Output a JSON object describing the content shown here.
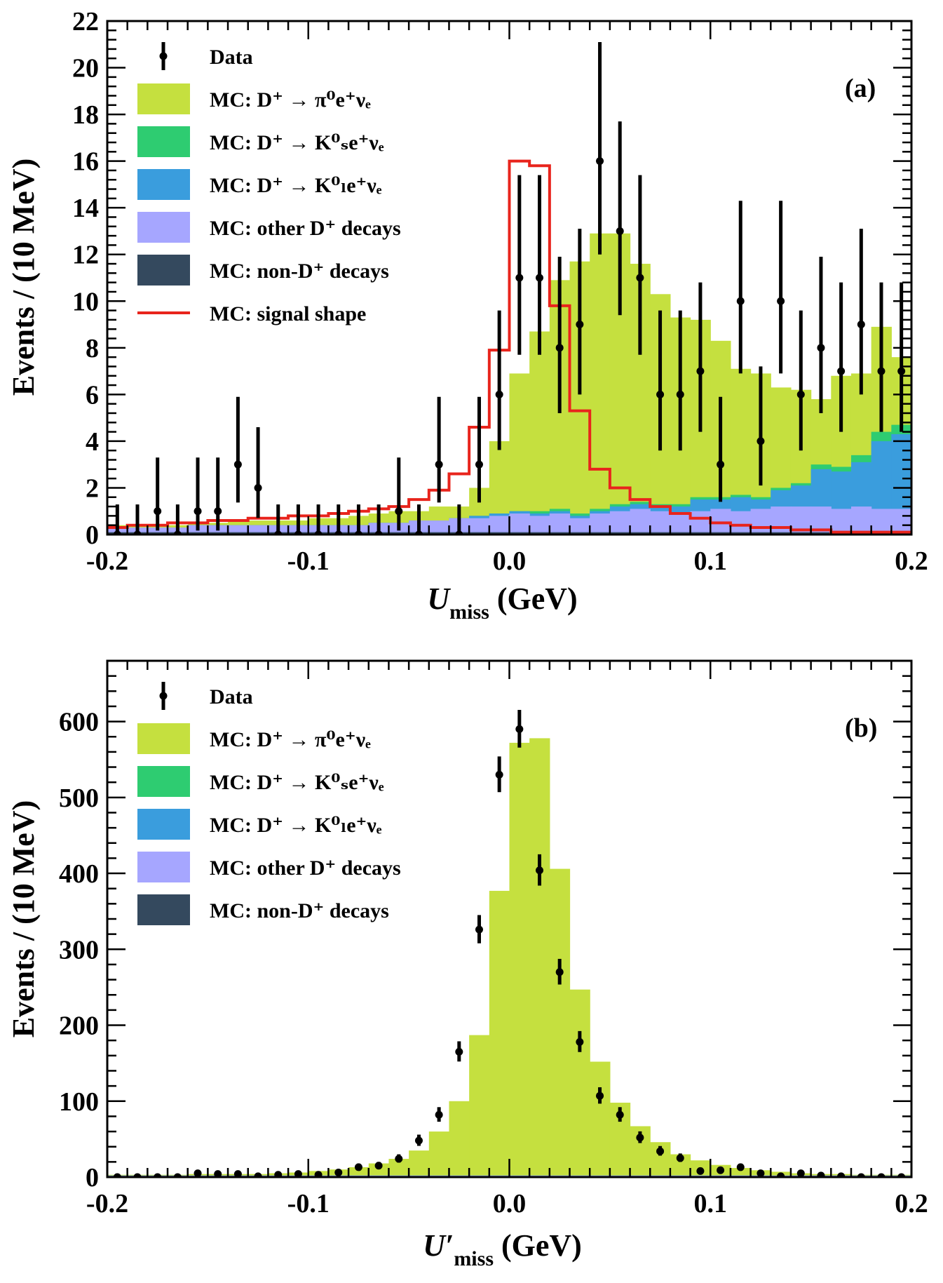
{
  "colors": {
    "pi0": "#c5e03f",
    "ks": "#2ecc71",
    "kl": "#3a9ddd",
    "other": "#a6a6ff",
    "nonD": "#34495e",
    "signal": "#e8241c",
    "data": "#000000"
  },
  "chart_data": [
    {
      "type": "area",
      "panel_label": "(a)",
      "xlabel_main": "U",
      "xlabel_sub": "miss",
      "xlabel_units": " (GeV)",
      "ylabel": "Events / (10 MeV)",
      "xlim": [
        -0.2,
        0.2
      ],
      "ylim": [
        0,
        22
      ],
      "xticks": [
        -0.2,
        -0.1,
        0.0,
        0.1,
        0.2
      ],
      "xtick_labels": [
        "-0.2",
        "-0.1",
        "0.0",
        "0.1",
        "0.2"
      ],
      "yticks": [
        0,
        2,
        4,
        6,
        8,
        10,
        12,
        14,
        16,
        18,
        20,
        22
      ],
      "ytick_labels": [
        "0",
        "2",
        "4",
        "6",
        "8",
        "10",
        "12",
        "14",
        "16",
        "18",
        "20",
        "22"
      ],
      "legend_placement": "top-left",
      "legend": [
        {
          "key": "data",
          "kind": "marker",
          "main": "Data"
        },
        {
          "key": "pi0",
          "kind": "box",
          "main": "MC: D⁺ → π⁰e⁺νₑ"
        },
        {
          "key": "ks",
          "kind": "box",
          "main": "MC: D⁺ → K⁰ₛe⁺νₑ"
        },
        {
          "key": "kl",
          "kind": "box",
          "main": "MC: D⁺ → K⁰ₗe⁺νₑ"
        },
        {
          "key": "other",
          "kind": "box",
          "main": "MC: other D⁺ decays"
        },
        {
          "key": "nonD",
          "kind": "box",
          "main": "MC: non-D⁺ decays"
        },
        {
          "key": "signal",
          "kind": "line",
          "main": "MC: signal shape"
        }
      ],
      "bin_edges": [
        -0.2,
        -0.19,
        -0.18,
        -0.17,
        -0.16,
        -0.15,
        -0.14,
        -0.13,
        -0.12,
        -0.11,
        -0.1,
        -0.09,
        -0.08,
        -0.07,
        -0.06,
        -0.05,
        -0.04,
        -0.03,
        -0.02,
        -0.01,
        0.0,
        0.01,
        0.02,
        0.03,
        0.04,
        0.05,
        0.06,
        0.07,
        0.08,
        0.09,
        0.1,
        0.11,
        0.12,
        0.13,
        0.14,
        0.15,
        0.16,
        0.17,
        0.18,
        0.19,
        0.2
      ],
      "stack": {
        "nonD": [
          0.1,
          0.1,
          0.1,
          0.1,
          0.1,
          0.1,
          0.1,
          0.1,
          0.1,
          0.1,
          0.1,
          0.1,
          0.1,
          0.1,
          0.1,
          0.1,
          0.1,
          0.1,
          0.1,
          0.1,
          0.1,
          0.1,
          0.1,
          0.1,
          0.1,
          0.1,
          0.1,
          0.1,
          0.1,
          0.1,
          0.1,
          0.1,
          0.1,
          0.1,
          0.1,
          0.1,
          0.1,
          0.1,
          0.1,
          0.1
        ],
        "other": [
          0.2,
          0.2,
          0.2,
          0.2,
          0.3,
          0.3,
          0.3,
          0.3,
          0.3,
          0.3,
          0.3,
          0.3,
          0.3,
          0.4,
          0.4,
          0.5,
          0.5,
          0.6,
          0.6,
          0.7,
          0.8,
          0.7,
          0.8,
          0.6,
          0.8,
          0.9,
          1.0,
          0.9,
          0.8,
          0.9,
          1.0,
          0.9,
          1.0,
          1.1,
          1.1,
          1.1,
          1.0,
          1.1,
          1.0,
          1.0
        ],
        "kl": [
          0.0,
          0.0,
          0.0,
          0.0,
          0.0,
          0.0,
          0.0,
          0.0,
          0.0,
          0.0,
          0.0,
          0.0,
          0.0,
          0.0,
          0.0,
          0.0,
          0.0,
          0.0,
          0.1,
          0.1,
          0.1,
          0.1,
          0.1,
          0.1,
          0.1,
          0.2,
          0.2,
          0.2,
          0.3,
          0.5,
          0.4,
          0.6,
          0.4,
          0.7,
          0.9,
          1.6,
          1.6,
          1.9,
          2.9,
          3.2
        ],
        "ks": [
          0.0,
          0.0,
          0.0,
          0.0,
          0.0,
          0.0,
          0.0,
          0.0,
          0.0,
          0.0,
          0.0,
          0.0,
          0.0,
          0.0,
          0.0,
          0.0,
          0.0,
          0.0,
          0.0,
          0.0,
          0.0,
          0.1,
          0.1,
          0.1,
          0.1,
          0.1,
          0.1,
          0.1,
          0.1,
          0.1,
          0.1,
          0.1,
          0.1,
          0.1,
          0.1,
          0.2,
          0.2,
          0.3,
          0.4,
          0.4
        ],
        "pi0": [
          0.1,
          0.1,
          0.1,
          0.1,
          0.1,
          0.1,
          0.2,
          0.2,
          0.2,
          0.2,
          0.3,
          0.3,
          0.4,
          0.4,
          0.5,
          0.4,
          0.6,
          0.5,
          1.2,
          3.1,
          5.9,
          7.7,
          9.8,
          10.8,
          11.8,
          11.6,
          10.2,
          9.0,
          8.0,
          7.6,
          6.7,
          5.4,
          5.3,
          4.3,
          4.0,
          2.8,
          3.9,
          3.5,
          4.5,
          2.9
        ]
      },
      "signal_shape": [
        0.3,
        0.4,
        0.4,
        0.5,
        0.5,
        0.6,
        0.6,
        0.7,
        0.7,
        0.8,
        0.8,
        0.9,
        1.0,
        1.1,
        1.2,
        1.5,
        1.9,
        2.6,
        4.6,
        7.9,
        16.0,
        15.8,
        9.8,
        5.3,
        2.8,
        2.0,
        1.5,
        1.2,
        0.9,
        0.7,
        0.5,
        0.4,
        0.3,
        0.3,
        0.2,
        0.2,
        0.1,
        0.1,
        0.1,
        0.1
      ],
      "data": {
        "x": [
          -0.195,
          -0.185,
          -0.175,
          -0.165,
          -0.155,
          -0.145,
          -0.135,
          -0.125,
          -0.115,
          -0.105,
          -0.095,
          -0.085,
          -0.075,
          -0.065,
          -0.055,
          -0.045,
          -0.035,
          -0.025,
          -0.015,
          -0.005,
          0.005,
          0.015,
          0.025,
          0.035,
          0.045,
          0.055,
          0.065,
          0.075,
          0.085,
          0.095,
          0.105,
          0.115,
          0.125,
          0.135,
          0.145,
          0.155,
          0.165,
          0.175,
          0.185,
          0.195
        ],
        "y": [
          0,
          0,
          1,
          0,
          1,
          1,
          3,
          2,
          0,
          0,
          0,
          0,
          0,
          0,
          1,
          0,
          3,
          0,
          3,
          6,
          11,
          11,
          8,
          9,
          16,
          13,
          11,
          6,
          6,
          7,
          3,
          10,
          4,
          10,
          6,
          8,
          7,
          9,
          7,
          7
        ],
        "err_low": [
          0,
          0,
          0.83,
          0,
          0.83,
          0.83,
          1.63,
          1.29,
          0,
          0,
          0,
          0,
          0,
          0,
          0.83,
          0,
          1.63,
          0,
          1.63,
          2.38,
          3.3,
          3.3,
          2.8,
          3.0,
          4.0,
          3.6,
          3.3,
          2.4,
          2.4,
          2.6,
          1.6,
          3.1,
          1.9,
          3.1,
          2.4,
          2.8,
          2.6,
          3.0,
          2.6,
          2.6
        ],
        "err_high": [
          1.29,
          1.29,
          2.3,
          1.29,
          2.3,
          2.3,
          2.9,
          2.6,
          1.29,
          1.29,
          1.29,
          1.29,
          1.29,
          1.29,
          2.3,
          1.29,
          2.9,
          1.29,
          2.9,
          3.6,
          4.4,
          4.4,
          3.9,
          4.1,
          5.1,
          4.7,
          4.4,
          3.6,
          3.6,
          3.8,
          2.9,
          4.3,
          3.2,
          4.3,
          3.6,
          3.9,
          3.8,
          4.1,
          3.8,
          3.8
        ]
      }
    },
    {
      "type": "area",
      "panel_label": "(b)",
      "xlabel_main": "U′",
      "xlabel_sub": "miss",
      "xlabel_units": " (GeV)",
      "ylabel": "Events / (10 MeV)",
      "xlim": [
        -0.2,
        0.2
      ],
      "ylim": [
        0,
        680
      ],
      "xticks": [
        -0.2,
        -0.1,
        0.0,
        0.1,
        0.2
      ],
      "xtick_labels": [
        "-0.2",
        "-0.1",
        "0.0",
        "0.1",
        "0.2"
      ],
      "yticks": [
        0,
        100,
        200,
        300,
        400,
        500,
        600
      ],
      "ytick_labels": [
        "0",
        "100",
        "200",
        "300",
        "400",
        "500",
        "600"
      ],
      "legend_placement": "top-left",
      "legend": [
        {
          "key": "data",
          "kind": "marker",
          "main": "Data"
        },
        {
          "key": "pi0",
          "kind": "box",
          "main": "MC: D⁺ → π⁰e⁺νₑ"
        },
        {
          "key": "ks",
          "kind": "box",
          "main": "MC: D⁺ → K⁰ₛe⁺νₑ"
        },
        {
          "key": "kl",
          "kind": "box",
          "main": "MC: D⁺ → K⁰ₗe⁺νₑ"
        },
        {
          "key": "other",
          "kind": "box",
          "main": "MC: other D⁺ decays"
        },
        {
          "key": "nonD",
          "kind": "box",
          "main": "MC: non-D⁺ decays"
        }
      ],
      "bin_edges": [
        -0.2,
        -0.19,
        -0.18,
        -0.17,
        -0.16,
        -0.15,
        -0.14,
        -0.13,
        -0.12,
        -0.11,
        -0.1,
        -0.09,
        -0.08,
        -0.07,
        -0.06,
        -0.05,
        -0.04,
        -0.03,
        -0.02,
        -0.01,
        0.0,
        0.01,
        0.02,
        0.03,
        0.04,
        0.05,
        0.06,
        0.07,
        0.08,
        0.09,
        0.1,
        0.11,
        0.12,
        0.13,
        0.14,
        0.15,
        0.16,
        0.17,
        0.18,
        0.19,
        0.2
      ],
      "stack": {
        "nonD": [
          1,
          1,
          1,
          1,
          1,
          1,
          1,
          1,
          1,
          1,
          1,
          1,
          1,
          1,
          1,
          1,
          1,
          1,
          1,
          1,
          1,
          1,
          1,
          1,
          1,
          1,
          1,
          1,
          1,
          1,
          1,
          1,
          1,
          1,
          1,
          1,
          1,
          1,
          1,
          1
        ],
        "other": [
          1,
          1,
          1,
          1,
          1,
          1,
          1,
          1,
          1,
          1,
          1,
          1,
          1,
          1,
          1,
          1,
          1,
          1,
          1,
          1,
          1,
          1,
          1,
          1,
          1,
          1,
          1,
          1,
          1,
          1,
          1,
          1,
          1,
          1,
          1,
          1,
          1,
          1,
          1,
          1
        ],
        "kl": [
          0,
          0,
          0,
          0,
          0,
          0,
          0,
          0,
          0,
          0,
          0,
          0,
          0,
          0,
          0,
          0,
          0,
          0,
          0,
          0,
          0,
          0,
          0,
          0,
          0,
          0,
          0,
          0,
          0,
          0,
          0,
          0,
          0,
          0,
          0,
          0,
          0,
          0,
          0,
          0
        ],
        "ks": [
          0,
          0,
          0,
          0,
          0,
          0,
          0,
          0,
          0,
          0,
          0,
          0,
          0,
          0,
          0,
          0,
          0,
          0,
          0,
          0,
          0,
          0,
          0,
          0,
          0,
          0,
          0,
          0,
          0,
          0,
          0,
          0,
          0,
          0,
          0,
          0,
          0,
          0,
          0,
          0
        ],
        "pi0": [
          1,
          1,
          1,
          1,
          2,
          2,
          2,
          2,
          3,
          4,
          6,
          8,
          11,
          16,
          22,
          33,
          58,
          98,
          185,
          375,
          570,
          576,
          404,
          245,
          150,
          96,
          65,
          44,
          28,
          20,
          14,
          10,
          7,
          5,
          3,
          2,
          2,
          1,
          1,
          1
        ]
      },
      "data": {
        "x": [
          -0.195,
          -0.185,
          -0.175,
          -0.165,
          -0.155,
          -0.145,
          -0.135,
          -0.125,
          -0.115,
          -0.105,
          -0.095,
          -0.085,
          -0.075,
          -0.065,
          -0.055,
          -0.045,
          -0.035,
          -0.025,
          -0.015,
          -0.005,
          0.005,
          0.015,
          0.025,
          0.035,
          0.045,
          0.055,
          0.065,
          0.075,
          0.085,
          0.095,
          0.105,
          0.115,
          0.125,
          0.135,
          0.145,
          0.155,
          0.165,
          0.175,
          0.185,
          0.195
        ],
        "y": [
          0,
          0,
          0,
          0,
          5,
          4,
          4,
          1,
          3,
          4,
          3,
          6,
          13,
          15,
          24,
          48,
          82,
          165,
          326,
          530,
          590,
          404,
          270,
          178,
          107,
          82,
          52,
          34,
          25,
          8,
          9,
          13,
          5,
          1,
          5,
          2,
          1,
          0,
          0,
          0
        ],
        "err_low": [
          0,
          0,
          0,
          0,
          2.2,
          2.0,
          2.0,
          1.0,
          1.7,
          2.0,
          1.7,
          2.4,
          3.6,
          3.9,
          4.9,
          6.9,
          9.1,
          12.8,
          18.1,
          23.0,
          24.3,
          20.1,
          16.4,
          13.3,
          10.3,
          9.1,
          7.2,
          5.8,
          5.0,
          2.8,
          3.0,
          3.6,
          2.2,
          1.0,
          2.2,
          1.4,
          1.0,
          0,
          0,
          0
        ],
        "err_high": [
          1.8,
          1.8,
          1.8,
          1.8,
          3.4,
          3.2,
          3.2,
          2.3,
          2.9,
          3.2,
          2.9,
          3.6,
          4.7,
          5.0,
          6.0,
          7.9,
          10.1,
          13.8,
          19.1,
          24.0,
          25.3,
          21.1,
          17.4,
          14.3,
          11.3,
          10.1,
          8.2,
          6.9,
          6.1,
          3.9,
          4.1,
          4.7,
          3.4,
          2.3,
          3.4,
          2.6,
          2.3,
          1.8,
          1.8,
          1.8
        ]
      }
    }
  ]
}
